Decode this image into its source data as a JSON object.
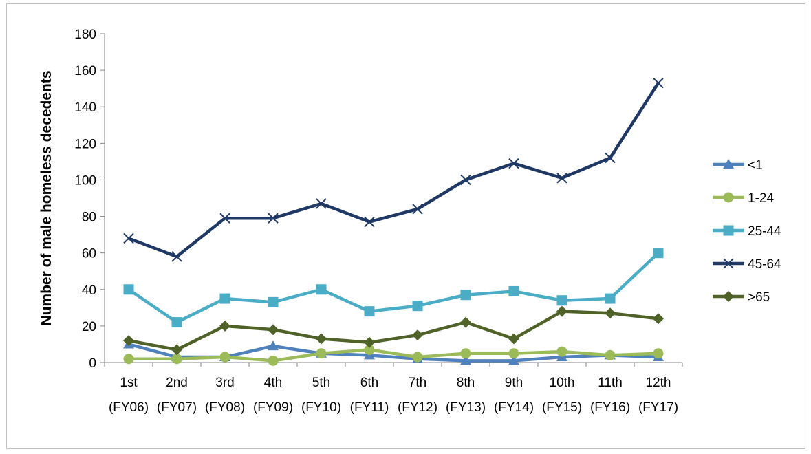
{
  "chart_data": {
    "type": "line",
    "title": "",
    "xlabel": "",
    "ylabel": "Number of male homeless decedents",
    "ylim": [
      0,
      180
    ],
    "yticks": [
      0,
      20,
      40,
      60,
      80,
      100,
      120,
      140,
      160,
      180
    ],
    "grid": false,
    "legend_position": "right",
    "categories": [
      {
        "line1": "1st",
        "line2": "(FY06)"
      },
      {
        "line1": "2nd",
        "line2": "(FY07)"
      },
      {
        "line1": "3rd",
        "line2": "(FY08)"
      },
      {
        "line1": "4th",
        "line2": "(FY09)"
      },
      {
        "line1": "5th",
        "line2": "(FY10)"
      },
      {
        "line1": "6th",
        "line2": "(FY11)"
      },
      {
        "line1": "7th",
        "line2": "(FY12)"
      },
      {
        "line1": "8th",
        "line2": "(FY13)"
      },
      {
        "line1": "9th",
        "line2": "(FY14)"
      },
      {
        "line1": "10th",
        "line2": "(FY15)"
      },
      {
        "line1": "11th",
        "line2": "(FY16)"
      },
      {
        "line1": "12th",
        "line2": "(FY17)"
      }
    ],
    "series": [
      {
        "name": "<1",
        "color": "#4F81BD",
        "marker": "triangle",
        "values": [
          10,
          3,
          3,
          9,
          5,
          4,
          2,
          1,
          1,
          3,
          4,
          3
        ]
      },
      {
        "name": "1-24",
        "color": "#9BBB59",
        "marker": "circle",
        "values": [
          2,
          2,
          3,
          1,
          5,
          7,
          3,
          5,
          5,
          6,
          4,
          5
        ]
      },
      {
        "name": "25-44",
        "color": "#4BACC6",
        "marker": "square",
        "values": [
          40,
          22,
          35,
          33,
          40,
          28,
          31,
          37,
          39,
          34,
          35,
          60
        ]
      },
      {
        "name": "45-64",
        "color": "#1F3864",
        "marker": "x",
        "values": [
          68,
          58,
          79,
          79,
          87,
          77,
          84,
          100,
          109,
          101,
          112,
          153
        ]
      },
      {
        "name": ">65",
        "color": "#4F6228",
        "marker": "diamond",
        "values": [
          12,
          7,
          20,
          18,
          13,
          11,
          15,
          22,
          13,
          28,
          27,
          24
        ]
      }
    ]
  }
}
